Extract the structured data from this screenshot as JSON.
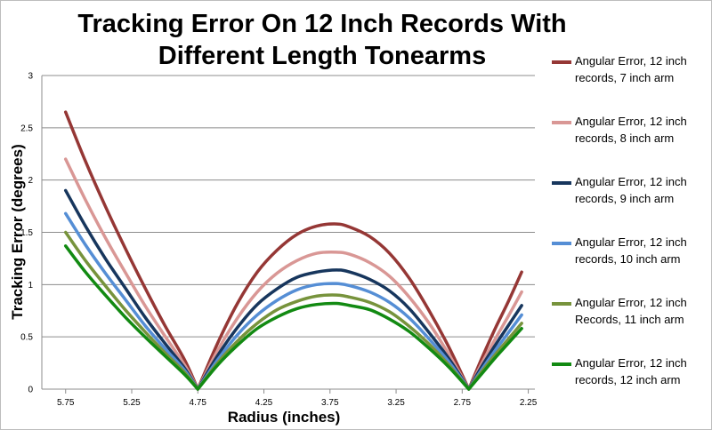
{
  "chart_data": {
    "type": "line",
    "title": "Tracking Error On 12 Inch Records With Different Length Tonearms",
    "title_lines": [
      "Tracking Error On 12 Inch Records With",
      "Different Length Tonearms"
    ],
    "xlabel": "Radius (inches)",
    "ylabel": "Tracking Error (degrees)",
    "x_reversed": true,
    "xlim": [
      5.93,
      2.2
    ],
    "ylim": [
      0,
      3
    ],
    "xticks": [
      "5.75",
      "5.25",
      "4.75",
      "4.25",
      "3.75",
      "3.25",
      "2.75",
      "2.25"
    ],
    "xtick_values": [
      5.75,
      5.25,
      4.75,
      4.25,
      3.75,
      3.25,
      2.75,
      2.25
    ],
    "yticks": [
      "0",
      "0.5",
      "1",
      "1.5",
      "2",
      "2.5",
      "3"
    ],
    "ytick_values": [
      0,
      0.5,
      1,
      1.5,
      2,
      2.5,
      3
    ],
    "grid": "horizontal",
    "legend_position": "right",
    "x": [
      5.75,
      5.6,
      5.45,
      5.3,
      5.15,
      5.0,
      4.85,
      4.75,
      4.6,
      4.45,
      4.3,
      4.15,
      4.0,
      3.85,
      3.7,
      3.6,
      3.45,
      3.3,
      3.15,
      3.0,
      2.85,
      2.7,
      2.6,
      2.5,
      2.4,
      2.3
    ],
    "series": [
      {
        "name": "Angular Error, 12 inch records, 7 inch arm",
        "color": "#953735",
        "values": [
          2.65,
          2.18,
          1.75,
          1.35,
          0.97,
          0.61,
          0.28,
          0.0,
          0.44,
          0.82,
          1.12,
          1.33,
          1.48,
          1.56,
          1.58,
          1.55,
          1.46,
          1.3,
          1.06,
          0.75,
          0.4,
          0.0,
          0.3,
          0.58,
          0.84,
          1.12
        ]
      },
      {
        "name": "Angular Error, 12 inch records, 8 inch arm",
        "color": "#d99795",
        "values": [
          2.2,
          1.81,
          1.45,
          1.12,
          0.8,
          0.51,
          0.23,
          0.0,
          0.37,
          0.68,
          0.93,
          1.11,
          1.23,
          1.3,
          1.31,
          1.29,
          1.21,
          1.08,
          0.88,
          0.63,
          0.33,
          0.0,
          0.25,
          0.48,
          0.7,
          0.93
        ]
      },
      {
        "name": "Angular Error, 12 inch records, 9 inch arm",
        "color": "#17365d",
        "values": [
          1.9,
          1.56,
          1.25,
          0.97,
          0.69,
          0.44,
          0.2,
          0.0,
          0.32,
          0.59,
          0.81,
          0.96,
          1.07,
          1.12,
          1.14,
          1.12,
          1.05,
          0.94,
          0.77,
          0.54,
          0.29,
          0.0,
          0.22,
          0.42,
          0.61,
          0.8
        ]
      },
      {
        "name": "Angular Error, 12 inch records, 10 inch arm",
        "color": "#558ed5",
        "values": [
          1.68,
          1.38,
          1.11,
          0.86,
          0.61,
          0.39,
          0.18,
          0.0,
          0.28,
          0.52,
          0.71,
          0.85,
          0.95,
          1.0,
          1.01,
          0.99,
          0.93,
          0.83,
          0.68,
          0.48,
          0.26,
          0.0,
          0.19,
          0.37,
          0.54,
          0.71
        ]
      },
      {
        "name": "Angular Error, 12 inch Records, 11 inch arm",
        "color": "#77933c",
        "values": [
          1.5,
          1.23,
          0.99,
          0.76,
          0.55,
          0.35,
          0.16,
          0.0,
          0.25,
          0.46,
          0.63,
          0.76,
          0.84,
          0.89,
          0.9,
          0.88,
          0.83,
          0.74,
          0.6,
          0.43,
          0.23,
          0.0,
          0.17,
          0.33,
          0.48,
          0.63
        ]
      },
      {
        "name": "Angular Error, 12 inch records, 12 inch arm",
        "color": "#128a12",
        "values": [
          1.37,
          1.12,
          0.9,
          0.69,
          0.5,
          0.32,
          0.14,
          0.0,
          0.23,
          0.42,
          0.58,
          0.69,
          0.77,
          0.81,
          0.82,
          0.8,
          0.76,
          0.67,
          0.55,
          0.39,
          0.21,
          0.0,
          0.15,
          0.3,
          0.44,
          0.58
        ]
      }
    ]
  },
  "legend": {
    "items": [
      {
        "line1": "Angular Error, 12 inch",
        "line2": "records, 7 inch arm",
        "color": "#953735"
      },
      {
        "line1": "Angular Error, 12 inch",
        "line2": "records, 8 inch arm",
        "color": "#d99795"
      },
      {
        "line1": "Angular Error, 12 inch",
        "line2": "records, 9 inch arm",
        "color": "#17365d"
      },
      {
        "line1": "Angular Error, 12 inch",
        "line2": "records, 10 inch arm",
        "color": "#558ed5"
      },
      {
        "line1": "Angular Error, 12 inch",
        "line2": "Records, 11 inch arm",
        "color": "#77933c"
      },
      {
        "line1": "Angular Error, 12 inch",
        "line2": "records, 12 inch arm",
        "color": "#128a12"
      }
    ]
  }
}
